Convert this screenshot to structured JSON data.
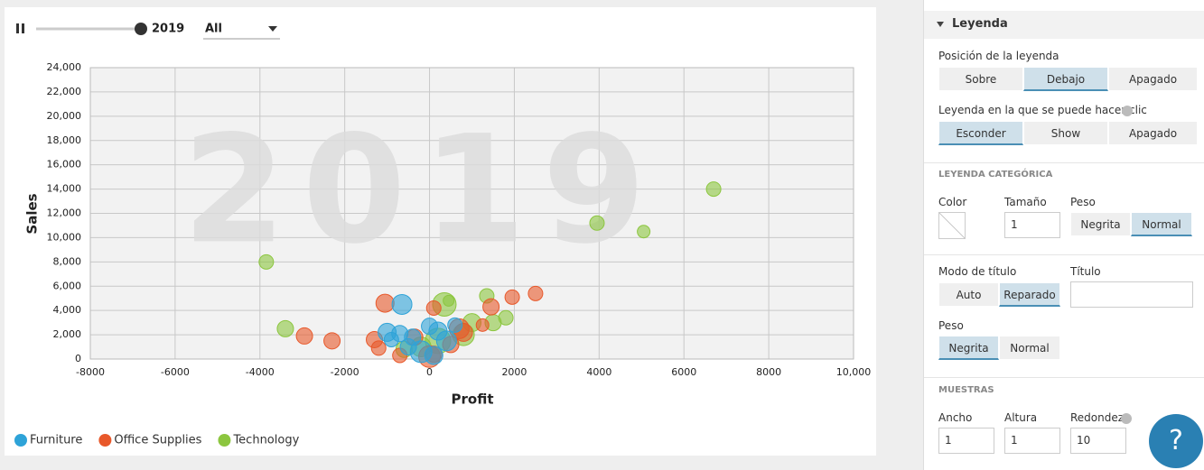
{
  "chart_data": {
    "type": "scatter",
    "watermark": "2019",
    "x_label": "Profit",
    "y_label": "Sales",
    "xlim": [
      -8000,
      10000
    ],
    "xticks": [
      -8000,
      -6000,
      -4000,
      -2000,
      0,
      2000,
      4000,
      6000,
      8000,
      {
        "value": 10000,
        "label": "10,000"
      }
    ],
    "ylim": [
      0,
      24000
    ],
    "yticks": [
      0,
      {
        "value": 2000,
        "label": "2,000"
      },
      {
        "value": 4000,
        "label": "4,000"
      },
      {
        "value": 6000,
        "label": "6,000"
      },
      {
        "value": 8000,
        "label": "8,000"
      },
      {
        "value": 10000,
        "label": "10,000"
      },
      {
        "value": 12000,
        "label": "12,000"
      },
      {
        "value": 14000,
        "label": "14,000"
      },
      {
        "value": 16000,
        "label": "16,000"
      },
      {
        "value": 18000,
        "label": "18,000"
      },
      {
        "value": 20000,
        "label": "20,000"
      },
      {
        "value": 22000,
        "label": "22,000"
      },
      {
        "value": 24000,
        "label": "24,000"
      }
    ],
    "grid": true,
    "legend": "bottom",
    "series": [
      {
        "name": "Technology",
        "color": "#8cc63f",
        "x": [
          6700,
          3950,
          5050,
          -3850,
          -3400,
          1350,
          1500,
          1800,
          350,
          450,
          1000,
          -200,
          -600,
          800,
          200
        ],
        "values": [
          14000,
          11200,
          10500,
          8000,
          2500,
          5200,
          3000,
          3400,
          4500,
          4800,
          3000,
          1000,
          800,
          2000,
          1500
        ],
        "sizes": [
          8,
          8,
          7,
          8,
          9,
          8,
          9,
          8,
          13,
          6,
          10,
          11,
          9,
          12,
          14
        ]
      },
      {
        "name": "Office Supplies",
        "color": "#e8582a",
        "x": [
          2500,
          1950,
          1450,
          100,
          -1050,
          -2300,
          -2950,
          -1300,
          -1200,
          -700,
          -350,
          0,
          100,
          700,
          800,
          500,
          1250
        ],
        "values": [
          5400,
          5100,
          4300,
          4200,
          4600,
          1500,
          1900,
          1600,
          900,
          300,
          1800,
          200,
          400,
          2500,
          2200,
          1200,
          2800
        ],
        "sizes": [
          8,
          8,
          9,
          8,
          10,
          9,
          9,
          9,
          8,
          8,
          9,
          12,
          9,
          11,
          10,
          9,
          7
        ]
      },
      {
        "name": "Furniture",
        "color": "#2ea3d8",
        "x": [
          -650,
          -1000,
          -700,
          -400,
          0,
          200,
          600,
          -200,
          100,
          -500,
          400,
          -900
        ],
        "values": [
          4500,
          2200,
          2100,
          1800,
          2700,
          2300,
          2800,
          600,
          300,
          1000,
          1500,
          1600
        ],
        "sizes": [
          11,
          10,
          9,
          9,
          9,
          10,
          8,
          12,
          10,
          9,
          11,
          8
        ]
      }
    ]
  },
  "controls": {
    "year": "2019",
    "filter": "All"
  },
  "panel": {
    "section": "Leyenda",
    "legend_position": {
      "label": "Posición de la leyenda",
      "options": [
        "Sobre",
        "Debajo",
        "Apagado"
      ],
      "selected": 1
    },
    "clickable_legend": {
      "label": "Leyenda en la que se puede hacer clic",
      "options": [
        "Esconder",
        "Show",
        "Apagado"
      ],
      "selected": 0
    },
    "category_legend": {
      "heading": "LEYENDA CATEGÓRICA",
      "color_label": "Color",
      "size_label": "Tamaño",
      "size": "1",
      "weight_label": "Peso",
      "weight": {
        "options": [
          "Negrita",
          "Normal"
        ],
        "selected": 1
      }
    },
    "title_mode": {
      "label": "Modo de título",
      "options": [
        "Auto",
        "Reparado"
      ],
      "selected": 1
    },
    "title_label": "Título",
    "title_weight": {
      "label": "Peso",
      "options": [
        "Negrita",
        "Normal"
      ],
      "selected": 0
    },
    "samples": {
      "heading": "MUESTRAS",
      "width_label": "Ancho",
      "width": "1",
      "height_label": "Altura",
      "height": "1",
      "radius_label": "Redondez",
      "radius": "10"
    },
    "help": "?"
  }
}
